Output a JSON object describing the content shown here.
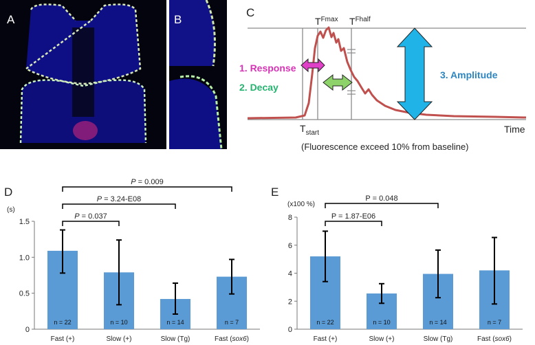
{
  "panels": {
    "a": {
      "letter": "A"
    },
    "b": {
      "letter": "B"
    },
    "c": {
      "letter": "C",
      "t_fmax": {
        "main": "T",
        "sub": "Fmax"
      },
      "t_fhalf": {
        "main": "T",
        "sub": "Fhalf"
      },
      "t_start": {
        "main": "T",
        "sub": "start"
      },
      "response_label": "1. Response",
      "decay_label": "2. Decay",
      "amplitude_label": "3. Amplitude",
      "time_label": "Time",
      "caption": "(Fluorescence exceed 10% from baseline)"
    },
    "d": {
      "letter": "D"
    },
    "e": {
      "letter": "E"
    }
  },
  "colors": {
    "bar": "#5b9bd5",
    "trace": "#c0504d",
    "response": "#d633b5",
    "decay": "#25b36f",
    "amplitude": "#2e86c1",
    "response_arrow": "#e040c8",
    "decay_arrow": "#8ed36a",
    "amplitude_arrow": "#1fb3e8"
  },
  "chart_data": [
    {
      "id": "d",
      "type": "bar",
      "unit_label": "(s)",
      "categories": [
        "Fast (+)",
        "Slow (+)",
        "Slow (Tg)",
        "Fast (sox6)"
      ],
      "category_parts": [
        {
          "pre": "Fast (+)",
          "it": "",
          "post": ""
        },
        {
          "pre": "Slow (+)",
          "it": "",
          "post": ""
        },
        {
          "pre": "Slow (Tg)",
          "it": "",
          "post": ""
        },
        {
          "pre": "Fast (",
          "it": "sox6",
          "post": ")"
        }
      ],
      "values": [
        1.09,
        0.79,
        0.42,
        0.73
      ],
      "error_low": [
        0.78,
        0.34,
        0.21,
        0.49
      ],
      "error_high": [
        1.38,
        1.24,
        0.64,
        0.97
      ],
      "n_labels": [
        "n = 22",
        "n = 10",
        "n = 14",
        "n = 7"
      ],
      "ylim": [
        0,
        1.5
      ],
      "yticks": [
        0,
        0.5,
        1.0,
        1.5
      ],
      "ytick_labels": [
        "0",
        "0.5",
        "1.0",
        "1.5"
      ],
      "comparisons": [
        {
          "from": 0,
          "to": 1,
          "p_label": "P",
          "p_text": " = 0.037"
        },
        {
          "from": 0,
          "to": 2,
          "p_label": "P",
          "p_text": " = 3.24-E08"
        },
        {
          "from": 0,
          "to": 3,
          "p_label": "P",
          "p_text": " = 0.009"
        }
      ]
    },
    {
      "id": "e",
      "type": "bar",
      "unit_label": "(x100 %)",
      "categories": [
        "Fast (+)",
        "Slow (+)",
        "Slow (Tg)",
        "Fast (sox6)"
      ],
      "category_parts": [
        {
          "pre": "Fast (+)",
          "it": "",
          "post": ""
        },
        {
          "pre": "Slow (+)",
          "it": "",
          "post": ""
        },
        {
          "pre": "Slow (Tg)",
          "it": "",
          "post": ""
        },
        {
          "pre": "Fast (",
          "it": "sox6",
          "post": ")"
        }
      ],
      "values": [
        5.2,
        2.55,
        3.95,
        4.2
      ],
      "error_low": [
        3.4,
        1.85,
        2.25,
        1.8
      ],
      "error_high": [
        7.0,
        3.25,
        5.65,
        6.55
      ],
      "n_labels": [
        "n = 22",
        "n = 10",
        "n = 14",
        "n = 7"
      ],
      "ylim": [
        0,
        8
      ],
      "yticks": [
        0,
        2,
        4,
        6,
        8
      ],
      "ytick_labels": [
        "0",
        "2",
        "4",
        "6",
        "8"
      ],
      "comparisons": [
        {
          "from": 0,
          "to": 1,
          "p_label": "P",
          "p_text": " = 1.87-E06"
        },
        {
          "from": 0,
          "to": 2,
          "p_label": "P",
          "p_text": " = 0.048"
        }
      ]
    }
  ]
}
